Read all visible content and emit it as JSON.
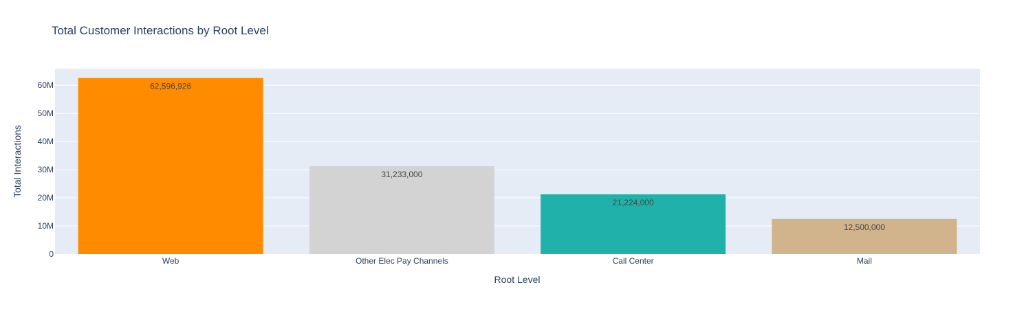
{
  "chart_data": {
    "type": "bar",
    "title": "Total Customer Interactions by Root Level",
    "xlabel": "Root Level",
    "ylabel": "Total Interactions",
    "categories": [
      "Web",
      "Other Elec Pay Channels",
      "Call Center",
      "Mail"
    ],
    "values": [
      62596926,
      31233000,
      21224000,
      12500000
    ],
    "data_labels": [
      "62,596,926",
      "31,233,000",
      "21,224,000",
      "12,500,000"
    ],
    "colors": [
      "#ff8c00",
      "#d3d3d3",
      "#20b2aa",
      "#d2b48c"
    ],
    "ylim": [
      0,
      65891501
    ],
    "yticks": [
      0,
      10000000,
      20000000,
      30000000,
      40000000,
      50000000,
      60000000
    ],
    "ytick_labels": [
      "0",
      "10M",
      "20M",
      "30M",
      "40M",
      "50M",
      "60M"
    ],
    "grid": true,
    "plot_background": "#e5ecf6",
    "legend": "none"
  }
}
